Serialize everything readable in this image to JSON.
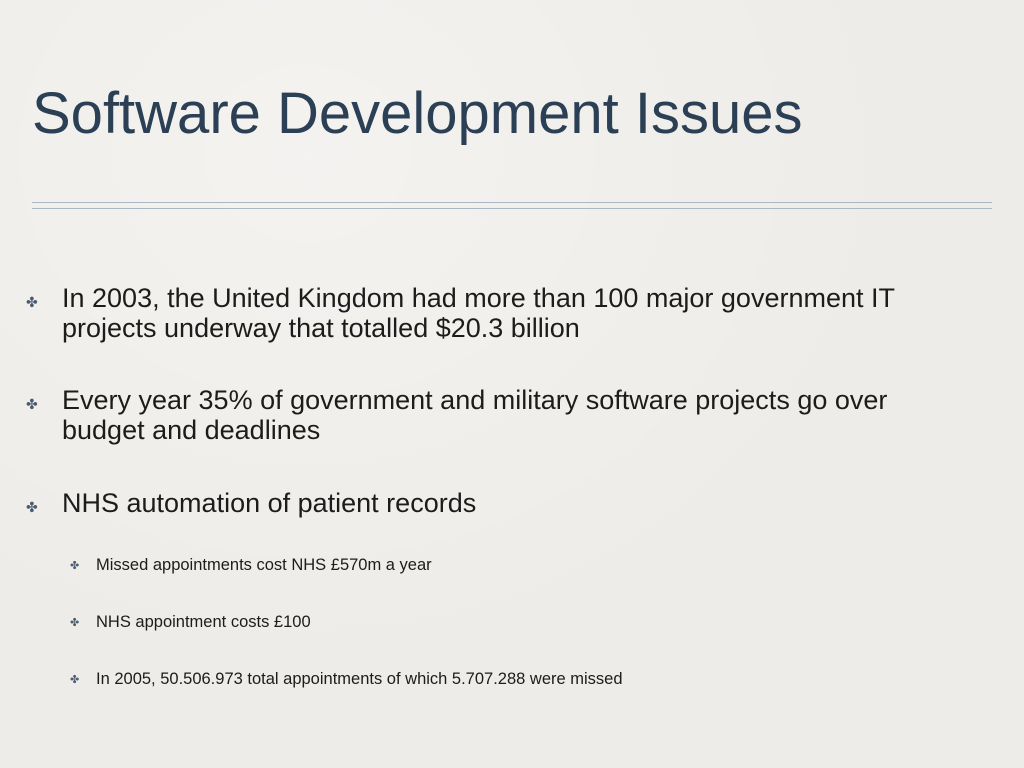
{
  "slide": {
    "title": "Software Development Issues",
    "bullets": [
      {
        "icon": "cross-bullet-icon",
        "line1": "In 2003, the United Kingdom had more than 100 major government IT",
        "line2": "projects underway that totalled $20.3 billion"
      },
      {
        "icon": "cross-bullet-icon",
        "line1": "Every year 35% of government and military software projects go over",
        "line2": "budget and deadlines"
      },
      {
        "icon": "cross-bullet-icon",
        "line1": "NHS automation of patient records"
      }
    ],
    "sub_bullets": [
      {
        "icon": "cross-bullet-icon",
        "text": "Missed appointments cost NHS £570m a year"
      },
      {
        "icon": "cross-bullet-icon",
        "text": "NHS appointment costs £100"
      },
      {
        "icon": "cross-bullet-icon",
        "text": "In 2005, 50.506.973 total appointments of which 5.707.288 were missed"
      }
    ],
    "colors": {
      "title": "#2b3f55",
      "background": "#eeece8",
      "bullet_icon": "#4a5c70"
    }
  }
}
